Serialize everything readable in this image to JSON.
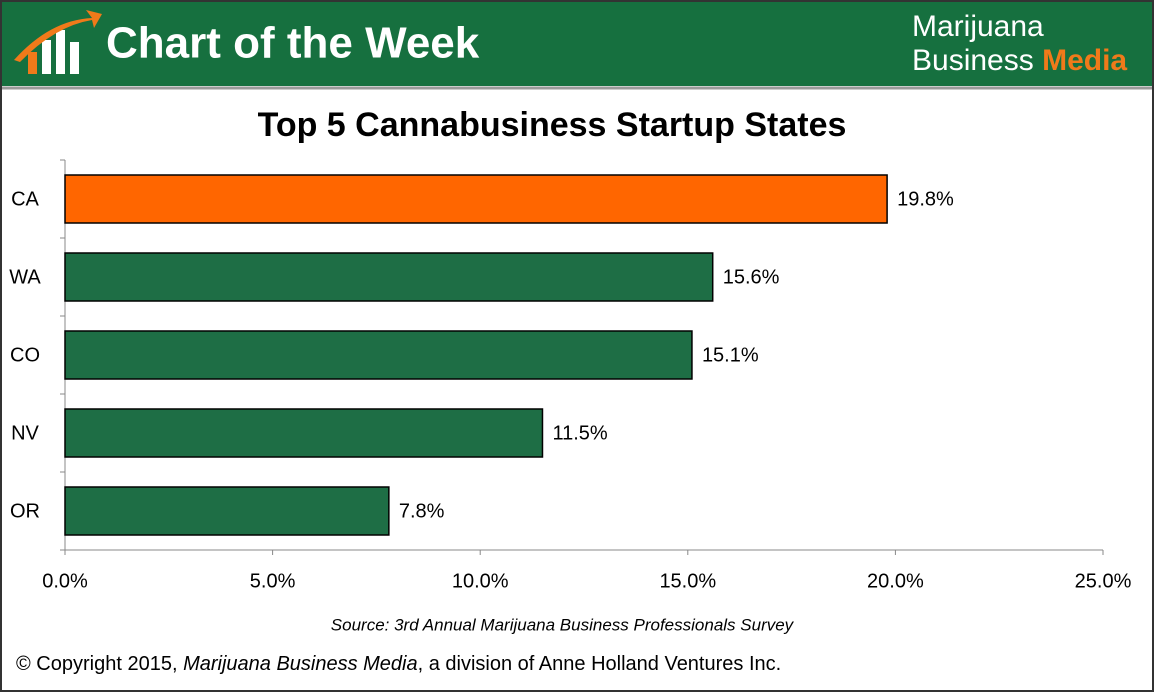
{
  "header": {
    "title": "Chart of the Week",
    "brand": [
      "Marijuana",
      "Business",
      "Media"
    ]
  },
  "chart_data": {
    "type": "bar",
    "orientation": "horizontal",
    "title": "Top 5 Cannabusiness Startup States",
    "categories": [
      "CA",
      "WA",
      "CO",
      "NV",
      "OR"
    ],
    "values": [
      19.8,
      15.6,
      15.1,
      11.5,
      7.8
    ],
    "value_labels": [
      "19.8%",
      "15.6%",
      "15.1%",
      "11.5%",
      "7.8%"
    ],
    "colors": [
      "#ff6600",
      "#1e6e45",
      "#1e6e45",
      "#1e6e45",
      "#1e6e45"
    ],
    "xlim": [
      0,
      25
    ],
    "xticks": [
      {
        "value": 0,
        "label": "0.0%"
      },
      {
        "value": 5,
        "label": "5.0%"
      },
      {
        "value": 10,
        "label": "10.0%"
      },
      {
        "value": 15,
        "label": "15.0%"
      },
      {
        "value": 20,
        "label": "20.0%"
      },
      {
        "value": 25,
        "label": "25.0%"
      }
    ],
    "source": "Source: 3rd Annual Marijuana Business Professionals Survey"
  },
  "footer": {
    "copyright": [
      "© Copyright 2015, ",
      "Marijuana Business Media",
      ", a division of Anne Holland Ventures Inc."
    ]
  }
}
